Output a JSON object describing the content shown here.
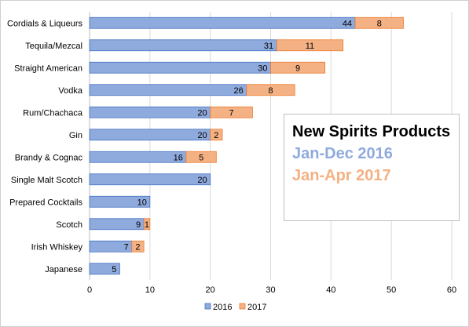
{
  "chart_data": {
    "type": "bar",
    "orientation": "horizontal",
    "stacked": true,
    "categories": [
      "Cordials & Liqueurs",
      "Tequila/Mezcal",
      "Straight American",
      "Vodka",
      "Rum/Chachaca",
      "Gin",
      "Brandy & Cognac",
      "Single Malt Scotch",
      "Prepared Cocktails",
      "Scotch",
      "Irish Whiskey",
      "Japanese"
    ],
    "series": [
      {
        "name": "2016",
        "values": [
          44,
          31,
          30,
          26,
          20,
          20,
          16,
          20,
          10,
          9,
          7,
          5
        ],
        "labels": [
          "44",
          "31",
          "30",
          "26",
          "20",
          "20",
          "16",
          "20",
          "10",
          "9",
          "7",
          "5"
        ],
        "color": "#8FAADC"
      },
      {
        "name": "2017",
        "values": [
          8,
          11,
          9,
          8,
          7,
          2,
          5,
          0,
          0,
          1,
          2,
          0
        ],
        "labels": [
          "8",
          "11",
          "9",
          "8",
          "7",
          "2",
          "5",
          "",
          "",
          "1",
          "2",
          ""
        ],
        "color": "#F4B183"
      }
    ],
    "xlim": [
      0,
      60
    ],
    "xticks": [
      "0",
      "10",
      "20",
      "30",
      "40",
      "50",
      "60"
    ],
    "grid": "vertical",
    "legend": "bottom"
  },
  "annotation": {
    "title": "New Spirits Products",
    "line1": "Jan-Dec 2016",
    "line2": "Jan-Apr 2017",
    "color1": "#8FAADC",
    "color2": "#F4B183"
  },
  "colors": {
    "bar_border_2016": "#4472C4",
    "bar_border_2017": "#ED7D31",
    "grid": "#d9d9d9",
    "axis": "#bfbfbf"
  }
}
